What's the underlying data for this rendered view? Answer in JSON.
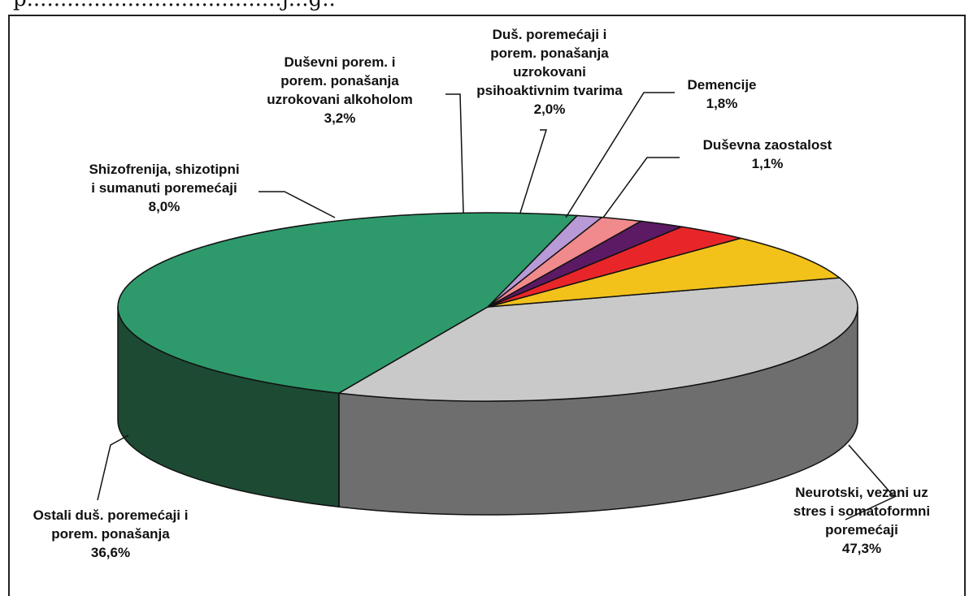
{
  "header": {
    "cut_text": "p......................................j...g.."
  },
  "chart_data": {
    "type": "pie",
    "slices": [
      {
        "label": [
          "Neurotski, vezani uz",
          "stres i somatoformni",
          "poremećaji"
        ],
        "value": 47.3,
        "value_label": "47,3%",
        "color": "#2e9a6b",
        "side": "#1d4a33"
      },
      {
        "label": [
          "Ostali duš. poremećaji i",
          "porem. ponašanja"
        ],
        "value": 36.6,
        "value_label": "36,6%",
        "color": "#c9c9c9",
        "side": "#6e6e6e"
      },
      {
        "label": [
          "Shizofrenija, shizotipni",
          "i sumanuti poremećaji"
        ],
        "value": 8.0,
        "value_label": "8,0%",
        "color": "#f2c21b",
        "side": "#a27f08"
      },
      {
        "label": [
          "Duševni porem. i",
          "porem. ponašanja",
          "uzrokovani alkoholom"
        ],
        "value": 3.2,
        "value_label": "3,2%",
        "color": "#e8262a",
        "side": "#8e1416"
      },
      {
        "label": [
          "Duš. poremećaji i",
          "porem. ponašanja",
          "uzrokovani",
          "psihoaktivnim tvarima"
        ],
        "value": 2.0,
        "value_label": "2,0%",
        "color": "#5b1a63",
        "side": "#36103b"
      },
      {
        "label": [
          "Demencije"
        ],
        "value": 1.8,
        "value_label": "1,8%",
        "color": "#f08a8c",
        "side": "#a35a5b"
      },
      {
        "label": [
          "Duševna zaostalost"
        ],
        "value": 1.1,
        "value_label": "1,1%",
        "color": "#b89ad6",
        "side": "#7a6595"
      }
    ]
  }
}
